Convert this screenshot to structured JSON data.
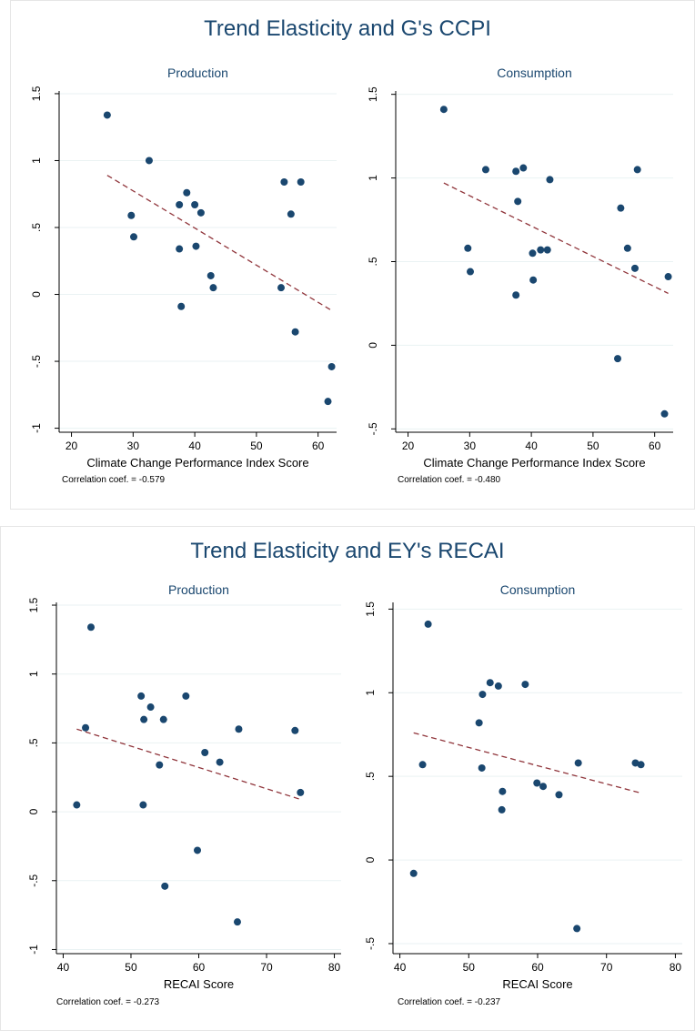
{
  "chart_data": [
    {
      "type": "scatter",
      "title": "Trend Elasticity and G's CCPI",
      "panels": [
        {
          "title": "Production",
          "xlabel": "Climate Change Performance Index Score",
          "ylabel": "",
          "xlim": [
            18,
            63
          ],
          "ylim": [
            -1.03,
            1.52
          ],
          "xticks": [
            20,
            30,
            40,
            50,
            60
          ],
          "yticks": [
            -1,
            -0.5,
            0,
            0.5,
            1,
            1.5
          ],
          "ytick_labels": [
            "-1",
            "-.5",
            "0",
            ".5",
            "1",
            "1.5"
          ],
          "note": "Correlation coef. = -0.579",
          "points": [
            {
              "x": 25.8,
              "y": 1.34
            },
            {
              "x": 32.6,
              "y": 1.0
            },
            {
              "x": 29.7,
              "y": 0.59
            },
            {
              "x": 30.1,
              "y": 0.43
            },
            {
              "x": 37.5,
              "y": 0.34
            },
            {
              "x": 37.5,
              "y": 0.67
            },
            {
              "x": 38.7,
              "y": 0.76
            },
            {
              "x": 40.0,
              "y": 0.67
            },
            {
              "x": 41.0,
              "y": 0.61
            },
            {
              "x": 40.2,
              "y": 0.36
            },
            {
              "x": 37.8,
              "y": -0.09
            },
            {
              "x": 42.6,
              "y": 0.14
            },
            {
              "x": 43.0,
              "y": 0.05
            },
            {
              "x": 54.5,
              "y": 0.84
            },
            {
              "x": 57.2,
              "y": 0.84
            },
            {
              "x": 55.6,
              "y": 0.6
            },
            {
              "x": 54.0,
              "y": 0.05
            },
            {
              "x": 56.3,
              "y": -0.28
            },
            {
              "x": 62.2,
              "y": -0.54
            },
            {
              "x": 61.6,
              "y": -0.8
            }
          ],
          "fit": {
            "x": [
              25.8,
              62.2
            ],
            "y": [
              0.89,
              -0.12
            ]
          }
        },
        {
          "title": "Consumption",
          "xlabel": "Climate Change Performance Index Score",
          "ylabel": "",
          "xlim": [
            18,
            63
          ],
          "ylim": [
            -0.52,
            1.52
          ],
          "xticks": [
            20,
            30,
            40,
            50,
            60
          ],
          "yticks": [
            -0.5,
            0,
            0.5,
            1,
            1.5
          ],
          "ytick_labels": [
            "-.5",
            "0",
            ".5",
            "1",
            "1.5"
          ],
          "note": "Correlation coef. = -0.480",
          "points": [
            {
              "x": 25.8,
              "y": 1.41
            },
            {
              "x": 32.6,
              "y": 1.05
            },
            {
              "x": 37.5,
              "y": 1.04
            },
            {
              "x": 38.7,
              "y": 1.06
            },
            {
              "x": 43.0,
              "y": 0.99
            },
            {
              "x": 37.8,
              "y": 0.86
            },
            {
              "x": 29.7,
              "y": 0.58
            },
            {
              "x": 30.1,
              "y": 0.44
            },
            {
              "x": 40.2,
              "y": 0.55
            },
            {
              "x": 41.5,
              "y": 0.57
            },
            {
              "x": 42.6,
              "y": 0.57
            },
            {
              "x": 40.3,
              "y": 0.39
            },
            {
              "x": 37.5,
              "y": 0.3
            },
            {
              "x": 54.5,
              "y": 0.82
            },
            {
              "x": 57.2,
              "y": 1.05
            },
            {
              "x": 55.6,
              "y": 0.58
            },
            {
              "x": 56.8,
              "y": 0.46
            },
            {
              "x": 62.2,
              "y": 0.41
            },
            {
              "x": 54.0,
              "y": -0.08
            },
            {
              "x": 61.6,
              "y": -0.41
            }
          ],
          "fit": {
            "x": [
              25.8,
              62.2
            ],
            "y": [
              0.97,
              0.31
            ]
          }
        }
      ]
    },
    {
      "type": "scatter",
      "title": "Trend Elasticity and EY's RECAI",
      "panels": [
        {
          "title": "Production",
          "xlabel": "RECAI Score",
          "ylabel": "",
          "xlim": [
            39,
            81
          ],
          "ylim": [
            -1.03,
            1.52
          ],
          "xticks": [
            40,
            50,
            60,
            70,
            80
          ],
          "yticks": [
            -1,
            -0.5,
            0,
            0.5,
            1,
            1.5
          ],
          "ytick_labels": [
            "-1",
            "-.5",
            "0",
            ".5",
            "1",
            "1.5"
          ],
          "note": "Correlation coef. = -0.273",
          "points": [
            {
              "x": 44.1,
              "y": 1.34
            },
            {
              "x": 43.3,
              "y": 0.61
            },
            {
              "x": 42.0,
              "y": 0.05
            },
            {
              "x": 51.5,
              "y": 0.84
            },
            {
              "x": 52.9,
              "y": 0.76
            },
            {
              "x": 51.9,
              "y": 0.67
            },
            {
              "x": 54.8,
              "y": 0.67
            },
            {
              "x": 58.1,
              "y": 0.84
            },
            {
              "x": 54.2,
              "y": 0.34
            },
            {
              "x": 51.8,
              "y": 0.05
            },
            {
              "x": 60.9,
              "y": 0.43
            },
            {
              "x": 63.1,
              "y": 0.36
            },
            {
              "x": 65.9,
              "y": 0.6
            },
            {
              "x": 74.2,
              "y": 0.59
            },
            {
              "x": 75.0,
              "y": 0.14
            },
            {
              "x": 59.8,
              "y": -0.28
            },
            {
              "x": 55.0,
              "y": -0.54
            },
            {
              "x": 65.7,
              "y": -0.8
            }
          ],
          "fit": {
            "x": [
              42.0,
              75.0
            ],
            "y": [
              0.6,
              0.09
            ]
          }
        },
        {
          "title": "Consumption",
          "xlabel": "RECAI Score",
          "ylabel": "",
          "xlim": [
            39,
            81
          ],
          "ylim": [
            -0.56,
            1.54
          ],
          "xticks": [
            40,
            50,
            60,
            70,
            80
          ],
          "yticks": [
            -0.5,
            0,
            0.5,
            1,
            1.5
          ],
          "ytick_labels": [
            "-.5",
            "0",
            ".5",
            "1",
            "1.5"
          ],
          "note": "Correlation coef. = -0.237",
          "points": [
            {
              "x": 44.1,
              "y": 1.41
            },
            {
              "x": 53.1,
              "y": 1.06
            },
            {
              "x": 54.3,
              "y": 1.04
            },
            {
              "x": 58.2,
              "y": 1.05
            },
            {
              "x": 52.0,
              "y": 0.99
            },
            {
              "x": 51.5,
              "y": 0.82
            },
            {
              "x": 43.3,
              "y": 0.57
            },
            {
              "x": 51.9,
              "y": 0.55
            },
            {
              "x": 54.9,
              "y": 0.41
            },
            {
              "x": 54.8,
              "y": 0.3
            },
            {
              "x": 59.9,
              "y": 0.46
            },
            {
              "x": 60.8,
              "y": 0.44
            },
            {
              "x": 63.1,
              "y": 0.39
            },
            {
              "x": 65.9,
              "y": 0.58
            },
            {
              "x": 74.2,
              "y": 0.58
            },
            {
              "x": 75.0,
              "y": 0.57
            },
            {
              "x": 42.0,
              "y": -0.08
            },
            {
              "x": 65.7,
              "y": -0.41
            }
          ],
          "fit": {
            "x": [
              42.0,
              75.0
            ],
            "y": [
              0.76,
              0.4
            ]
          }
        }
      ]
    }
  ],
  "colors": {
    "marker": "#1a476f",
    "fit_line": "#90353b",
    "title": "#1a476f",
    "grid": "#eaf2f3"
  }
}
